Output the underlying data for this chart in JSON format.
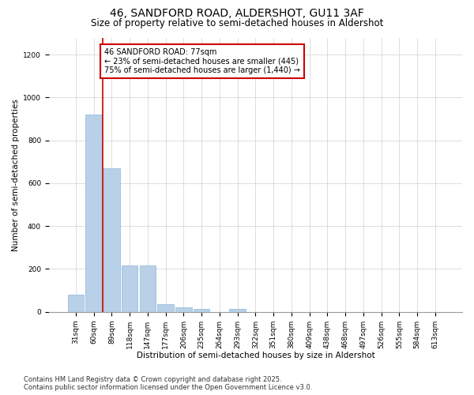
{
  "title": "46, SANDFORD ROAD, ALDERSHOT, GU11 3AF",
  "subtitle": "Size of property relative to semi-detached houses in Aldershot",
  "xlabel": "Distribution of semi-detached houses by size in Aldershot",
  "ylabel": "Number of semi-detached properties",
  "categories": [
    "31sqm",
    "60sqm",
    "89sqm",
    "118sqm",
    "147sqm",
    "177sqm",
    "206sqm",
    "235sqm",
    "264sqm",
    "293sqm",
    "322sqm",
    "351sqm",
    "380sqm",
    "409sqm",
    "438sqm",
    "468sqm",
    "497sqm",
    "526sqm",
    "555sqm",
    "584sqm",
    "613sqm"
  ],
  "values": [
    80,
    920,
    670,
    215,
    215,
    35,
    20,
    12,
    0,
    12,
    0,
    0,
    0,
    0,
    0,
    0,
    0,
    0,
    0,
    0,
    0
  ],
  "bar_color": "#b8d0e8",
  "bar_edge_color": "#90b8d8",
  "vline_color": "#cc0000",
  "annotation_text": "46 SANDFORD ROAD: 77sqm\n← 23% of semi-detached houses are smaller (445)\n75% of semi-detached houses are larger (1,440) →",
  "annotation_box_color": "#ffffff",
  "annotation_box_edge": "#cc0000",
  "ylim": [
    0,
    1280
  ],
  "yticks": [
    0,
    200,
    400,
    600,
    800,
    1000,
    1200
  ],
  "footer_line1": "Contains HM Land Registry data © Crown copyright and database right 2025.",
  "footer_line2": "Contains public sector information licensed under the Open Government Licence v3.0.",
  "bg_color": "#ffffff",
  "plot_bg_color": "#ffffff",
  "grid_color": "#d0d0d0",
  "title_fontsize": 10,
  "subtitle_fontsize": 8.5,
  "label_fontsize": 7.5,
  "tick_fontsize": 6.5,
  "footer_fontsize": 6
}
